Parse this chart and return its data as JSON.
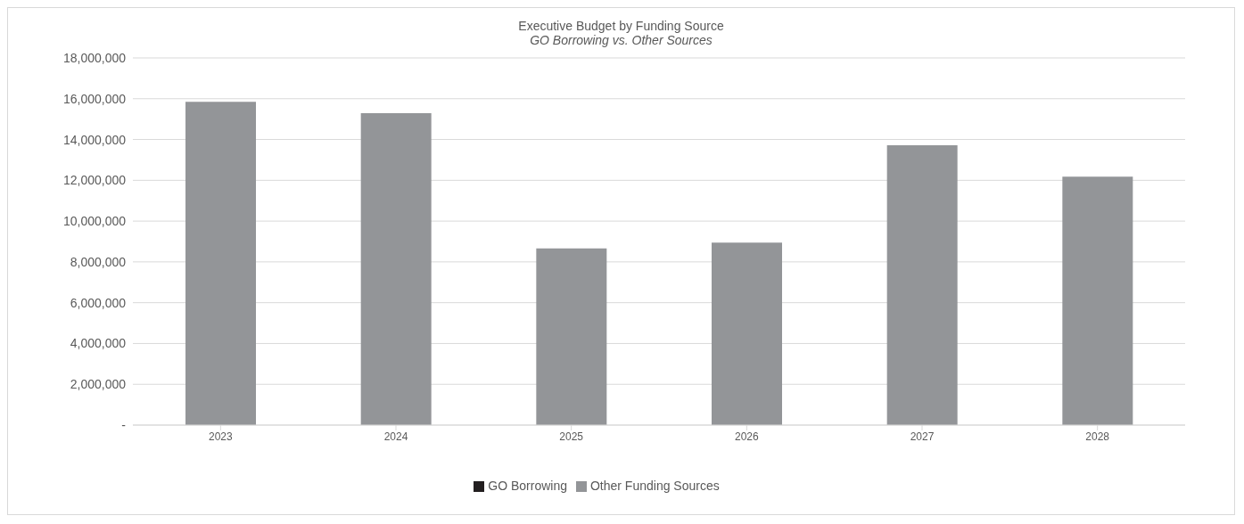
{
  "chart_data": {
    "type": "bar",
    "title": "Executive Budget by Funding Source",
    "subtitle": "GO Borrowing vs. Other Sources",
    "categories": [
      "2023",
      "2024",
      "2025",
      "2026",
      "2027",
      "2028"
    ],
    "stacked": true,
    "series": [
      {
        "name": "GO Borrowing",
        "color": "#231f20",
        "values": [
          0,
          0,
          0,
          0,
          0,
          0
        ]
      },
      {
        "name": "Other Funding Sources",
        "color": "#939598",
        "values": [
          15850000,
          15290000,
          8660000,
          8940000,
          13720000,
          12180000
        ]
      }
    ],
    "ylim": [
      0,
      18000000
    ],
    "yticks": [
      {
        "value": 0,
        "label": "-"
      },
      {
        "value": 2000000,
        "label": "2,000,000"
      },
      {
        "value": 4000000,
        "label": "4,000,000"
      },
      {
        "value": 6000000,
        "label": "6,000,000"
      },
      {
        "value": 8000000,
        "label": "8,000,000"
      },
      {
        "value": 10000000,
        "label": "10,000,000"
      },
      {
        "value": 12000000,
        "label": "12,000,000"
      },
      {
        "value": 14000000,
        "label": "14,000,000"
      },
      {
        "value": 16000000,
        "label": "16,000,000"
      },
      {
        "value": 18000000,
        "label": "18,000,000"
      }
    ],
    "grid": "y",
    "legend": "bottom"
  }
}
